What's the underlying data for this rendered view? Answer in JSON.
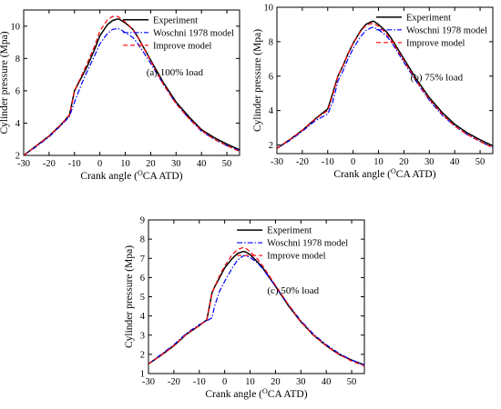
{
  "colors": {
    "experiment": "#000000",
    "woschni": "#0000ff",
    "improve": "#ff0000",
    "axis": "#000000"
  },
  "chart_data": [
    {
      "type": "line",
      "annotation": "(a) 100% load",
      "xlabel": "Crank angle (",
      "xlabel_sup": "O",
      "xlabel_rest": "CA ATD)",
      "ylabel": "Cylinder pressure (Mpa)",
      "xlim": [
        -30,
        55
      ],
      "ylim": [
        2,
        11
      ],
      "xticks": [
        -30,
        -20,
        -10,
        0,
        10,
        20,
        30,
        40,
        50
      ],
      "yticks": [
        2,
        4,
        6,
        8,
        10
      ],
      "legend_position": "top-right",
      "x": [
        -30,
        -25,
        -20,
        -15,
        -12,
        -10,
        -7,
        -5,
        -2,
        0,
        3,
        5,
        7,
        8,
        10,
        13,
        15,
        20,
        25,
        30,
        35,
        40,
        45,
        50,
        55
      ],
      "series": [
        {
          "name": "Experiment",
          "color_key": "experiment",
          "dash": "",
          "values": [
            2.0,
            2.6,
            3.2,
            3.95,
            4.5,
            6.0,
            6.9,
            7.5,
            8.6,
            9.4,
            10.1,
            10.35,
            10.45,
            10.4,
            10.2,
            9.8,
            9.3,
            7.9,
            6.5,
            5.3,
            4.4,
            3.6,
            3.1,
            2.7,
            2.35
          ]
        },
        {
          "name": "Woschni 1978 model",
          "color_key": "woschni",
          "dash": "6,2,1.5,2",
          "values": [
            2.0,
            2.55,
            3.15,
            3.9,
            4.4,
            5.3,
            6.5,
            7.2,
            8.2,
            8.9,
            9.55,
            9.8,
            9.85,
            9.8,
            9.6,
            9.3,
            8.9,
            7.7,
            6.4,
            5.2,
            4.3,
            3.5,
            3.0,
            2.6,
            2.3
          ]
        },
        {
          "name": "Improve model",
          "color_key": "improve",
          "dash": "5,3",
          "values": [
            2.0,
            2.6,
            3.2,
            3.95,
            4.5,
            6.0,
            7.0,
            7.7,
            8.8,
            9.7,
            10.4,
            10.6,
            10.6,
            10.5,
            10.25,
            9.8,
            9.3,
            7.85,
            6.4,
            5.2,
            4.3,
            3.55,
            3.0,
            2.6,
            2.25
          ]
        }
      ]
    },
    {
      "type": "line",
      "annotation": "(b) 75% load",
      "xlabel": "Crank angle (",
      "xlabel_sup": "O",
      "xlabel_rest": "CA ATD)",
      "ylabel": "Cylinder pressure (Mpa)",
      "xlim": [
        -30,
        55
      ],
      "ylim": [
        1.5,
        10
      ],
      "xticks": [
        -30,
        -20,
        -10,
        0,
        10,
        20,
        30,
        40,
        50
      ],
      "yticks": [
        2,
        4,
        6,
        8,
        10
      ],
      "legend_position": "top-right",
      "x": [
        -30,
        -25,
        -20,
        -15,
        -10,
        -8,
        -6,
        -4,
        -2,
        0,
        3,
        5,
        7,
        8,
        10,
        13,
        15,
        20,
        25,
        30,
        35,
        40,
        45,
        50,
        55
      ],
      "series": [
        {
          "name": "Experiment",
          "color_key": "experiment",
          "dash": "",
          "values": [
            1.8,
            2.3,
            2.85,
            3.5,
            4.1,
            5.0,
            6.0,
            6.6,
            7.3,
            7.9,
            8.65,
            9.0,
            9.15,
            9.2,
            9.0,
            8.6,
            8.2,
            7.0,
            5.8,
            4.75,
            3.9,
            3.2,
            2.7,
            2.3,
            1.95
          ]
        },
        {
          "name": "Woschni 1978 model",
          "color_key": "woschni",
          "dash": "6,2,1.5,2",
          "values": [
            1.8,
            2.25,
            2.8,
            3.4,
            3.8,
            4.5,
            5.7,
            6.3,
            7.0,
            7.6,
            8.3,
            8.65,
            8.8,
            8.85,
            8.7,
            8.35,
            8.0,
            6.8,
            5.65,
            4.6,
            3.75,
            3.1,
            2.6,
            2.2,
            1.85
          ]
        },
        {
          "name": "Improve model",
          "color_key": "improve",
          "dash": "5,3",
          "values": [
            1.8,
            2.3,
            2.85,
            3.5,
            4.0,
            4.9,
            6.0,
            6.6,
            7.3,
            7.9,
            8.6,
            8.95,
            9.05,
            9.05,
            8.9,
            8.5,
            8.1,
            6.9,
            5.7,
            4.65,
            3.8,
            3.1,
            2.6,
            2.2,
            1.85
          ]
        }
      ]
    },
    {
      "type": "line",
      "annotation": "(c) 50% load",
      "xlabel": "Crank angle (",
      "xlabel_sup": "O",
      "xlabel_rest": "CA ATD)",
      "ylabel": "Cylinder pressure (Mpa)",
      "xlim": [
        -30,
        55
      ],
      "ylim": [
        1,
        9
      ],
      "xticks": [
        -30,
        -20,
        -10,
        0,
        10,
        20,
        30,
        40,
        50
      ],
      "yticks": [
        1,
        2,
        3,
        4,
        5,
        6,
        7,
        8,
        9
      ],
      "legend_position": "top-right",
      "x": [
        -30,
        -25,
        -20,
        -15,
        -10,
        -7,
        -5,
        -4,
        -2,
        0,
        3,
        5,
        7,
        8,
        10,
        13,
        15,
        20,
        25,
        30,
        35,
        40,
        45,
        50,
        55
      ],
      "series": [
        {
          "name": "Experiment",
          "color_key": "experiment",
          "dash": "",
          "values": [
            1.5,
            1.95,
            2.45,
            3.05,
            3.5,
            3.8,
            5.2,
            5.5,
            6.0,
            6.5,
            7.0,
            7.25,
            7.35,
            7.35,
            7.2,
            6.8,
            6.5,
            5.55,
            4.55,
            3.7,
            3.0,
            2.45,
            2.0,
            1.7,
            1.45
          ]
        },
        {
          "name": "Woschni 1978 model",
          "color_key": "woschni",
          "dash": "6,2,1.5,2",
          "values": [
            1.5,
            2.0,
            2.5,
            3.1,
            3.55,
            3.75,
            3.9,
            4.5,
            5.3,
            5.8,
            6.5,
            6.9,
            7.1,
            7.15,
            7.05,
            6.75,
            6.45,
            5.55,
            4.6,
            3.75,
            3.05,
            2.5,
            2.05,
            1.7,
            1.45
          ]
        },
        {
          "name": "Improve model",
          "color_key": "improve",
          "dash": "5,3",
          "values": [
            1.5,
            1.95,
            2.45,
            3.05,
            3.5,
            3.8,
            5.2,
            5.5,
            6.1,
            6.6,
            7.2,
            7.45,
            7.55,
            7.55,
            7.35,
            6.95,
            6.6,
            5.6,
            4.6,
            3.7,
            3.0,
            2.45,
            2.0,
            1.65,
            1.4
          ]
        }
      ]
    }
  ]
}
